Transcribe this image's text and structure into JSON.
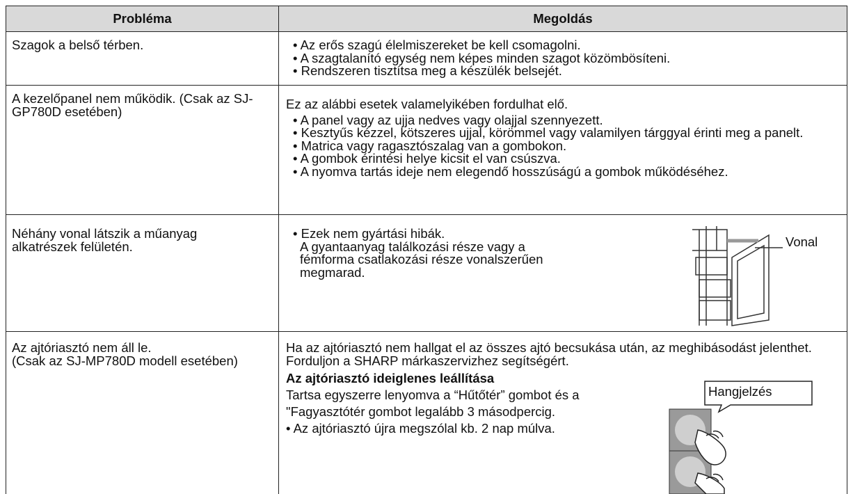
{
  "table": {
    "header": [
      "Probléma",
      "Megoldás"
    ],
    "rows": [
      {
        "problem": "Szagok a belső térben.",
        "bullets": [
          "• Az erős szagú élelmiszereket be kell csomagolni.",
          "• A szagtalanító egység nem képes minden szagot közömbösíteni.",
          "• Rendszeren tisztítsa meg a készülék belsejét."
        ]
      },
      {
        "problem": "A kezelőpanel nem működik. (Csak az SJ-GP780D esetében)",
        "intro": "Ez az alábbi esetek valamelyikében fordulhat elő.",
        "bullets": [
          "• A panel vagy az ujja nedves vagy olajjal szennyezett.",
          "• Kesztyűs kézzel, kötszeres ujjal, körömmel vagy valamilyen tárggyal érinti meg a panelt.",
          "• Matrica vagy ragasztószalag van a gombokon.",
          "• A gombok érintési helye kicsit el van csúszva.",
          "• A nyomva tartás ideje nem elegendő hosszúságú a gombok működéséhez."
        ]
      },
      {
        "problem": "Néhány vonal látszik a műanyag alkatrészek felületén.",
        "bullets": [
          "• Ezek nem gyártási hibák."
        ],
        "note": "A gyantaanyag találkozási része vagy a fémforma csatlakozási része vonalszerűen megmarad.",
        "figure_label": "Vonal"
      },
      {
        "problem": "Az ajtóriasztó nem áll le.\n(Csak az SJ-MP780D modell esetében)",
        "intro": "Ha az ajtóriasztó nem hallgat el az összes ajtó becsukása után, az meghibásodást jelenthet. Forduljon a SHARP márkaszervizhez segítségért.",
        "subheading": "Az ajtóriasztó ideiglenes leállítása",
        "text": "Tartsa egyszerre lenyomva a “Hűtőtér” gombot és a \"Fagyasztótér gombot legalább 3 másodpercig.",
        "bullets": [
          "• Az ajtóriasztó újra megszólal kb. 2 nap múlva."
        ],
        "figure_label": "Hangjelzés"
      }
    ]
  }
}
